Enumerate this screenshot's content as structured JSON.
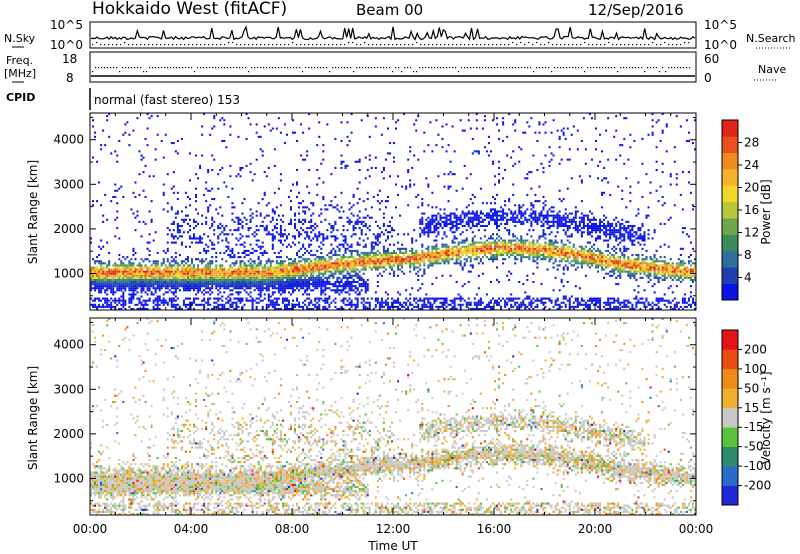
{
  "header": {
    "radar": "Hokkaido West (fitACF)",
    "beam": "Beam 00",
    "date": "12/Sep/2016"
  },
  "left_labels": {
    "nsky": "N.Sky",
    "freq_line1": "Freq.",
    "freq_line2": "[MHz]",
    "cpid": "CPID"
  },
  "right_labels": {
    "nsearch": "N.Search",
    "nave": "Nave"
  },
  "cpid_text": "normal (fast stereo) 153",
  "chart_data": [
    {
      "type": "line",
      "name": "noise",
      "left_ticks": [
        "10^5",
        "10^0"
      ],
      "right_ticks": [
        "10^5",
        "10^0"
      ]
    },
    {
      "type": "line",
      "name": "frequency",
      "left_ticks": [
        "18",
        "8"
      ],
      "right_ticks": [
        "60",
        "0"
      ]
    },
    {
      "type": "heatmap",
      "name": "power",
      "ylabel": "Slant Range [km]",
      "yticks": [
        1000,
        2000,
        3000,
        4000
      ],
      "ylim": [
        180,
        4600
      ],
      "xlim_hours": [
        0,
        24
      ],
      "colorbar": {
        "label": "Power [dB]",
        "ticks": [
          "4",
          "8",
          "12",
          "16",
          "20",
          "24",
          "28"
        ],
        "colors": [
          "#0a14e6",
          "#1f3fb0",
          "#2f6f9a",
          "#3b8a5a",
          "#6aa84a",
          "#b8c63a",
          "#f2d72a",
          "#f4b22a",
          "#ee8a20",
          "#e8501c",
          "#e2231a"
        ]
      }
    },
    {
      "type": "heatmap",
      "name": "velocity",
      "ylabel": "Slant Range [km]",
      "yticks": [
        1000,
        2000,
        3000,
        4000
      ],
      "ylim": [
        180,
        4600
      ],
      "xlim_hours": [
        0,
        24
      ],
      "xlabel": "Time UT",
      "xticks": [
        "00:00",
        "04:00",
        "08:00",
        "12:00",
        "16:00",
        "20:00",
        "00:00"
      ],
      "colorbar": {
        "label": "Velocity [m s⁻¹]",
        "ticks": [
          "200",
          "100",
          "50",
          "15",
          "-15",
          "-50",
          "-100",
          "-200"
        ],
        "colors": [
          "#1f2ad6",
          "#2a6acb",
          "#2f8a6a",
          "#58c23a",
          "#c8c8c8",
          "#f0b030",
          "#f08a18",
          "#e84e14",
          "#e2141a"
        ]
      }
    }
  ]
}
